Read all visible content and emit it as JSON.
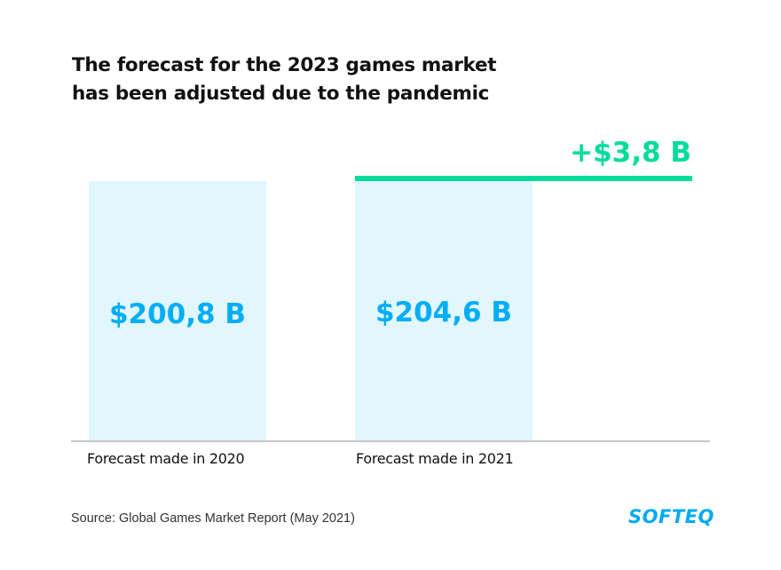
{
  "title": {
    "line1": "The forecast for the 2023 games market",
    "line2": "has been adjusted due to the pandemic"
  },
  "chart_data": {
    "type": "bar",
    "title": "The forecast for the 2023 games market has been adjusted due to the pandemic",
    "categories": [
      "Forecast made in 2020",
      "Forecast made in 2021"
    ],
    "values": [
      200.8,
      204.6
    ],
    "value_labels": [
      "$200,8 B",
      "$204,6 B"
    ],
    "unit": "B USD",
    "difference": {
      "value": 3.8,
      "label": "+$3,8 B"
    },
    "xlabel": "",
    "ylabel": "",
    "grid": false,
    "legend": "none",
    "colors": {
      "bar_fill": "#e2f6fe",
      "value_text": "#00aef5",
      "difference": "#00dc9a",
      "baseline": "#c6c6c6"
    }
  },
  "source": "Source: Global Games Market Report (May 2021)",
  "logo": "SOFTEQ"
}
